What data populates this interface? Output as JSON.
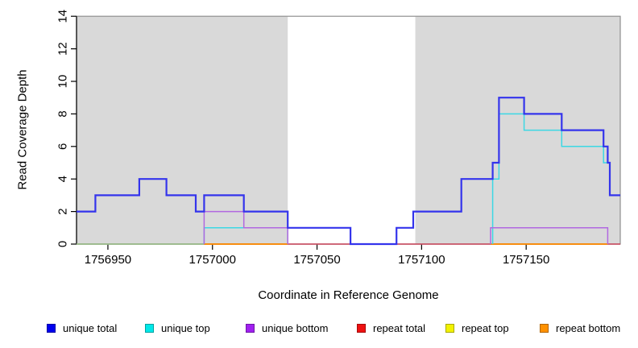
{
  "chart_data": {
    "type": "line",
    "subtype": "step",
    "title": "",
    "xlabel": "Coordinate in Reference Genome",
    "ylabel": "Read Coverage Depth",
    "xlim": [
      1756935,
      1757195
    ],
    "ylim": [
      0,
      14
    ],
    "x_ticks": [
      1756950,
      1757000,
      1757050,
      1757100,
      1757150
    ],
    "y_ticks": [
      0,
      2,
      4,
      6,
      8,
      10,
      12,
      14
    ],
    "grid": false,
    "legend_position": "bottom",
    "plot_border_color": "#8f8f8f",
    "masked_region_color": "#d9d9d9",
    "masked_regions": [
      {
        "x0": 1756935,
        "x1": 1757036
      },
      {
        "x0": 1757097,
        "x1": 1757195
      }
    ],
    "draw_order": [
      "repeat total",
      "repeat top",
      "repeat bottom",
      "unique top",
      "unique bottom",
      "unique total"
    ],
    "series": [
      {
        "name": "unique total",
        "legend_color": "#0000ee",
        "line_color": "#3434ec",
        "line_width": 2.2,
        "segments": [
          [
            [
              1756935,
              2
            ],
            [
              1756944,
              3
            ],
            [
              1756965,
              4
            ],
            [
              1756978,
              3
            ],
            [
              1756992,
              2
            ],
            [
              1756996,
              3
            ],
            [
              1757015,
              2
            ],
            [
              1757036,
              1
            ],
            [
              1757066,
              0
            ],
            [
              1757088,
              1
            ],
            [
              1757096,
              2
            ],
            [
              1757119,
              4
            ],
            [
              1757134,
              5
            ],
            [
              1757137,
              9
            ],
            [
              1757149,
              8
            ],
            [
              1757167,
              7
            ],
            [
              1757187,
              6
            ],
            [
              1757189,
              5
            ],
            [
              1757190,
              3
            ],
            [
              1757195,
              3
            ]
          ]
        ]
      },
      {
        "name": "unique top",
        "legend_color": "#00e8e8",
        "line_color": "#3cd8e4",
        "line_width": 1.5,
        "segments": [
          [
            [
              1756996,
              0
            ],
            [
              1756996,
              1
            ],
            [
              1757036,
              0
            ]
          ],
          [
            [
              1757134,
              0
            ],
            [
              1757134,
              4
            ],
            [
              1757137,
              8
            ],
            [
              1757149,
              7
            ],
            [
              1757167,
              6
            ],
            [
              1757187,
              5
            ],
            [
              1757190,
              3
            ],
            [
              1757195,
              3
            ]
          ]
        ]
      },
      {
        "name": "unique bottom",
        "legend_color": "#a020f0",
        "line_color": "#b168e0",
        "line_width": 1.5,
        "segments": [
          [
            [
              1756996,
              0
            ],
            [
              1756996,
              2
            ],
            [
              1757015,
              1
            ],
            [
              1757036,
              0
            ]
          ],
          [
            [
              1757133,
              0
            ],
            [
              1757133,
              1
            ],
            [
              1757189,
              0
            ]
          ]
        ]
      },
      {
        "name": "repeat total",
        "legend_color": "#ee1111",
        "line_color": "#da5468",
        "line_width": 1.5,
        "segments": [
          [
            [
              1756935,
              0
            ],
            [
              1757195,
              0
            ]
          ]
        ]
      },
      {
        "name": "repeat top",
        "legend_color": "#f2f200",
        "line_color": "#94d193",
        "line_width": 1.5,
        "segments": [
          [
            [
              1756935,
              0
            ],
            [
              1756996,
              0
            ]
          ]
        ]
      },
      {
        "name": "repeat bottom",
        "legend_color": "#ff9100",
        "line_color": "#ff9100",
        "line_width": 1.8,
        "segments": [
          [
            [
              1756996,
              0
            ],
            [
              1757036,
              0
            ]
          ],
          [
            [
              1757133,
              0
            ],
            [
              1757189,
              0
            ]
          ]
        ]
      }
    ]
  }
}
